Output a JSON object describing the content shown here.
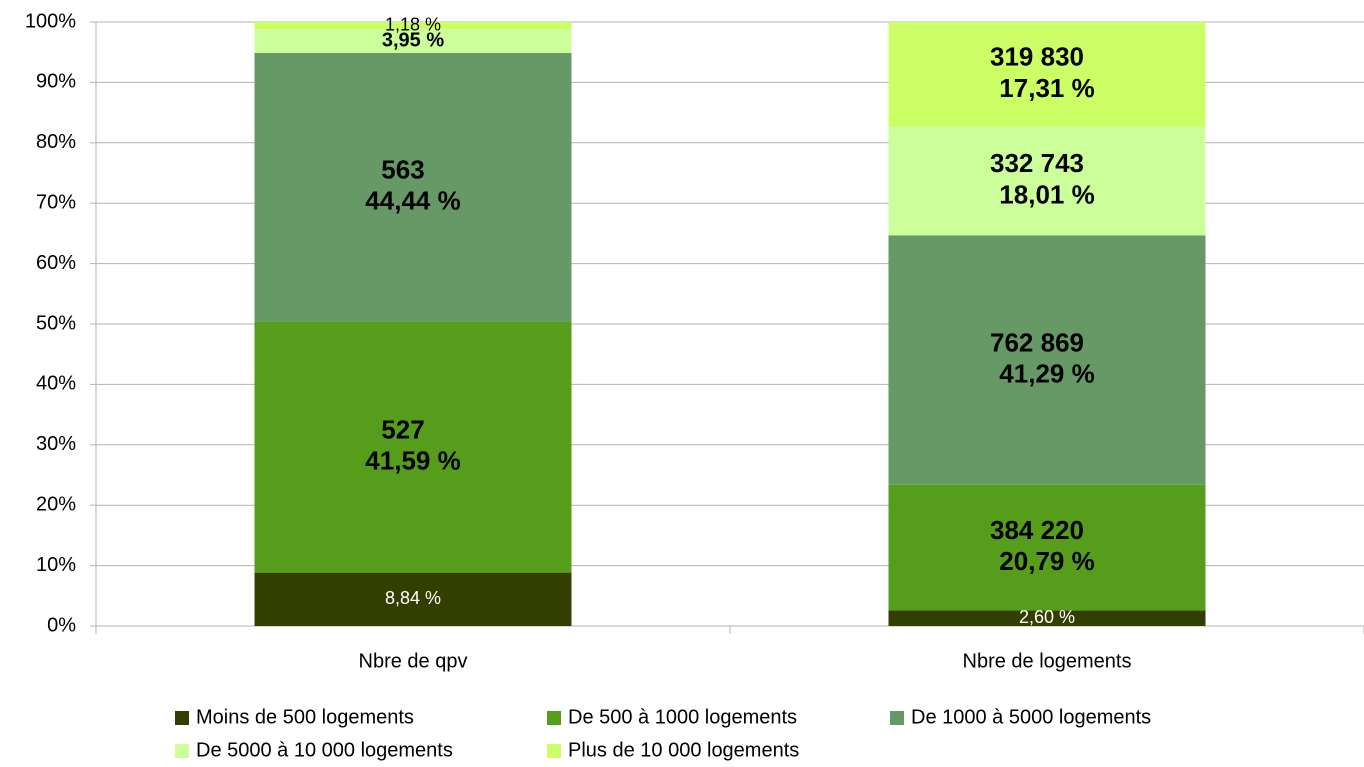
{
  "chart_data": {
    "type": "stacked_bar_100",
    "categories": [
      "Nbre de qpv",
      "Nbre de logements"
    ],
    "series": [
      {
        "name": "Moins de 500 logements",
        "color": "#333f00",
        "values": [
          8.84,
          2.6
        ],
        "value_labels": [
          "8,84 %",
          "2,60 %"
        ],
        "count_labels": [
          null,
          null
        ]
      },
      {
        "name": "De 500 à 1000 logements",
        "color": "#579d1c",
        "values": [
          41.59,
          20.79
        ],
        "value_labels": [
          "41,59 %",
          "20,79 %"
        ],
        "count_labels": [
          "527",
          "384 220"
        ]
      },
      {
        "name": "De 1000 à 5000 logements",
        "color": "#669966",
        "values": [
          44.44,
          41.29
        ],
        "value_labels": [
          "44,44 %",
          "41,29 %"
        ],
        "count_labels": [
          "563",
          "762 869"
        ]
      },
      {
        "name": "De 5000 à 10 000 logements",
        "color": "#ccff99",
        "values": [
          3.95,
          18.01
        ],
        "value_labels": [
          "3,95 %",
          "18,01 %"
        ],
        "count_labels": [
          null,
          "332 743"
        ]
      },
      {
        "name": "Plus de 10 000 logements",
        "color": "#ccff66",
        "values": [
          1.18,
          17.31
        ],
        "value_labels": [
          "1,18 %",
          "17,31 %"
        ],
        "count_labels": [
          null,
          "319 830"
        ]
      }
    ],
    "ylim": [
      0,
      100
    ],
    "yticks": [
      {
        "value": 0,
        "label": "0%"
      },
      {
        "value": 10,
        "label": "10%"
      },
      {
        "value": 20,
        "label": "20%"
      },
      {
        "value": 30,
        "label": "30%"
      },
      {
        "value": 40,
        "label": "40%"
      },
      {
        "value": 50,
        "label": "50%"
      },
      {
        "value": 60,
        "label": "60%"
      },
      {
        "value": 70,
        "label": "70%"
      },
      {
        "value": 80,
        "label": "80%"
      },
      {
        "value": 90,
        "label": "90%"
      },
      {
        "value": 100,
        "label": "100%"
      }
    ],
    "grid": true,
    "legend": "bottom"
  }
}
